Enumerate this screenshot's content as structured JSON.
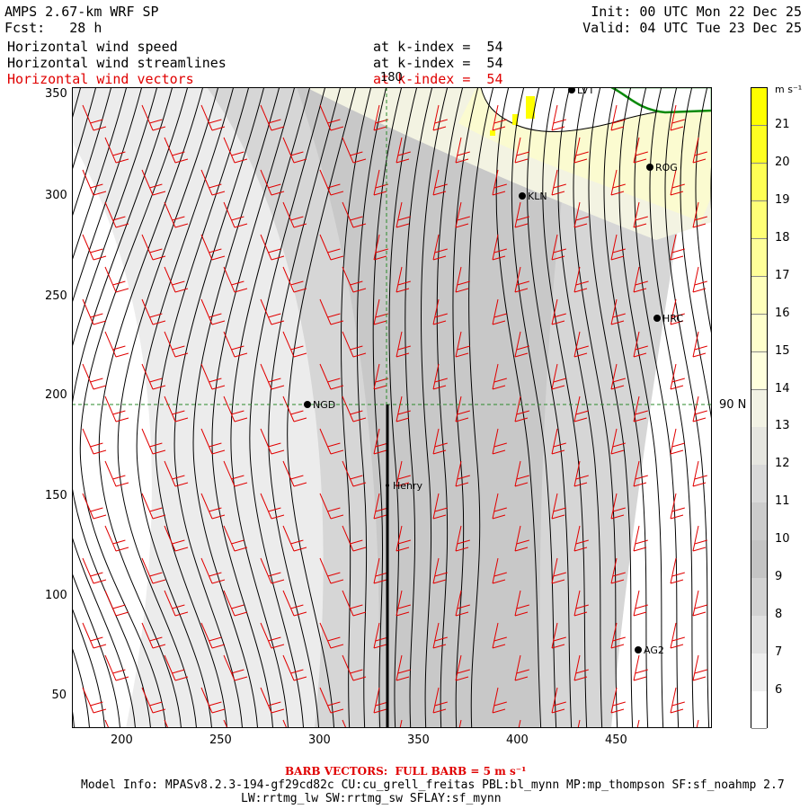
{
  "header": {
    "model_title": "AMPS 2.67-km WRF SP",
    "forecast": "Fcst:   28 h",
    "init": "Init: 00 UTC Mon 22 Dec 25",
    "valid": "Valid: 04 UTC Tue 23 Dec 25",
    "fields": [
      {
        "name": "Horizontal wind speed",
        "level": "at k-index =  54",
        "color": "black"
      },
      {
        "name": "Horizontal wind streamlines",
        "level": "at k-index =  54",
        "color": "black"
      },
      {
        "name": "Horizontal wind vectors",
        "level": "at k-index =  54",
        "color": "red"
      }
    ]
  },
  "map": {
    "x_ticks": [
      "200",
      "250",
      "300",
      "350",
      "400",
      "450"
    ],
    "y_ticks": [
      "350",
      "300",
      "250",
      "200",
      "150",
      "100",
      "50"
    ],
    "meridian_label": "180",
    "parallel_label": "90 N",
    "stations": [
      {
        "name": "LVT"
      },
      {
        "name": "ROG"
      },
      {
        "name": "KLN"
      },
      {
        "name": "HRC"
      },
      {
        "name": "NGD"
      },
      {
        "name": "Henry"
      },
      {
        "name": "AG2"
      }
    ]
  },
  "colorbar": {
    "units": "m s⁻¹",
    "levels": [
      "21",
      "20",
      "19",
      "18",
      "17",
      "16",
      "15",
      "14",
      "13",
      "12",
      "11",
      "10",
      "9",
      "8",
      "7",
      "6"
    ],
    "colors": [
      "#ffff00",
      "#ffff22",
      "#ffff55",
      "#ffff77",
      "#ffff99",
      "#ffffbb",
      "#ffffcc",
      "#ffffdd",
      "#f2f2e4",
      "#e6e6e0",
      "#d9d9d9",
      "#cccccc",
      "#c4c4c4",
      "#d2d2d2",
      "#e0e0e0",
      "#eeeeee",
      "#ffffff"
    ]
  },
  "footer": {
    "barb_note": "BARB VECTORS:  FULL BARB = 5 m s⁻¹",
    "model_info_1": "Model Info: MPASv8.2.3-194-gf29cd82c CU:cu_grell_freitas PBL:bl_mynn MP:mp_thompson SF:sf_noahmp 2.7",
    "model_info_2": "LW:rrtmg_lw SW:rrtmg_sw SFLAY:sf_mynn"
  }
}
